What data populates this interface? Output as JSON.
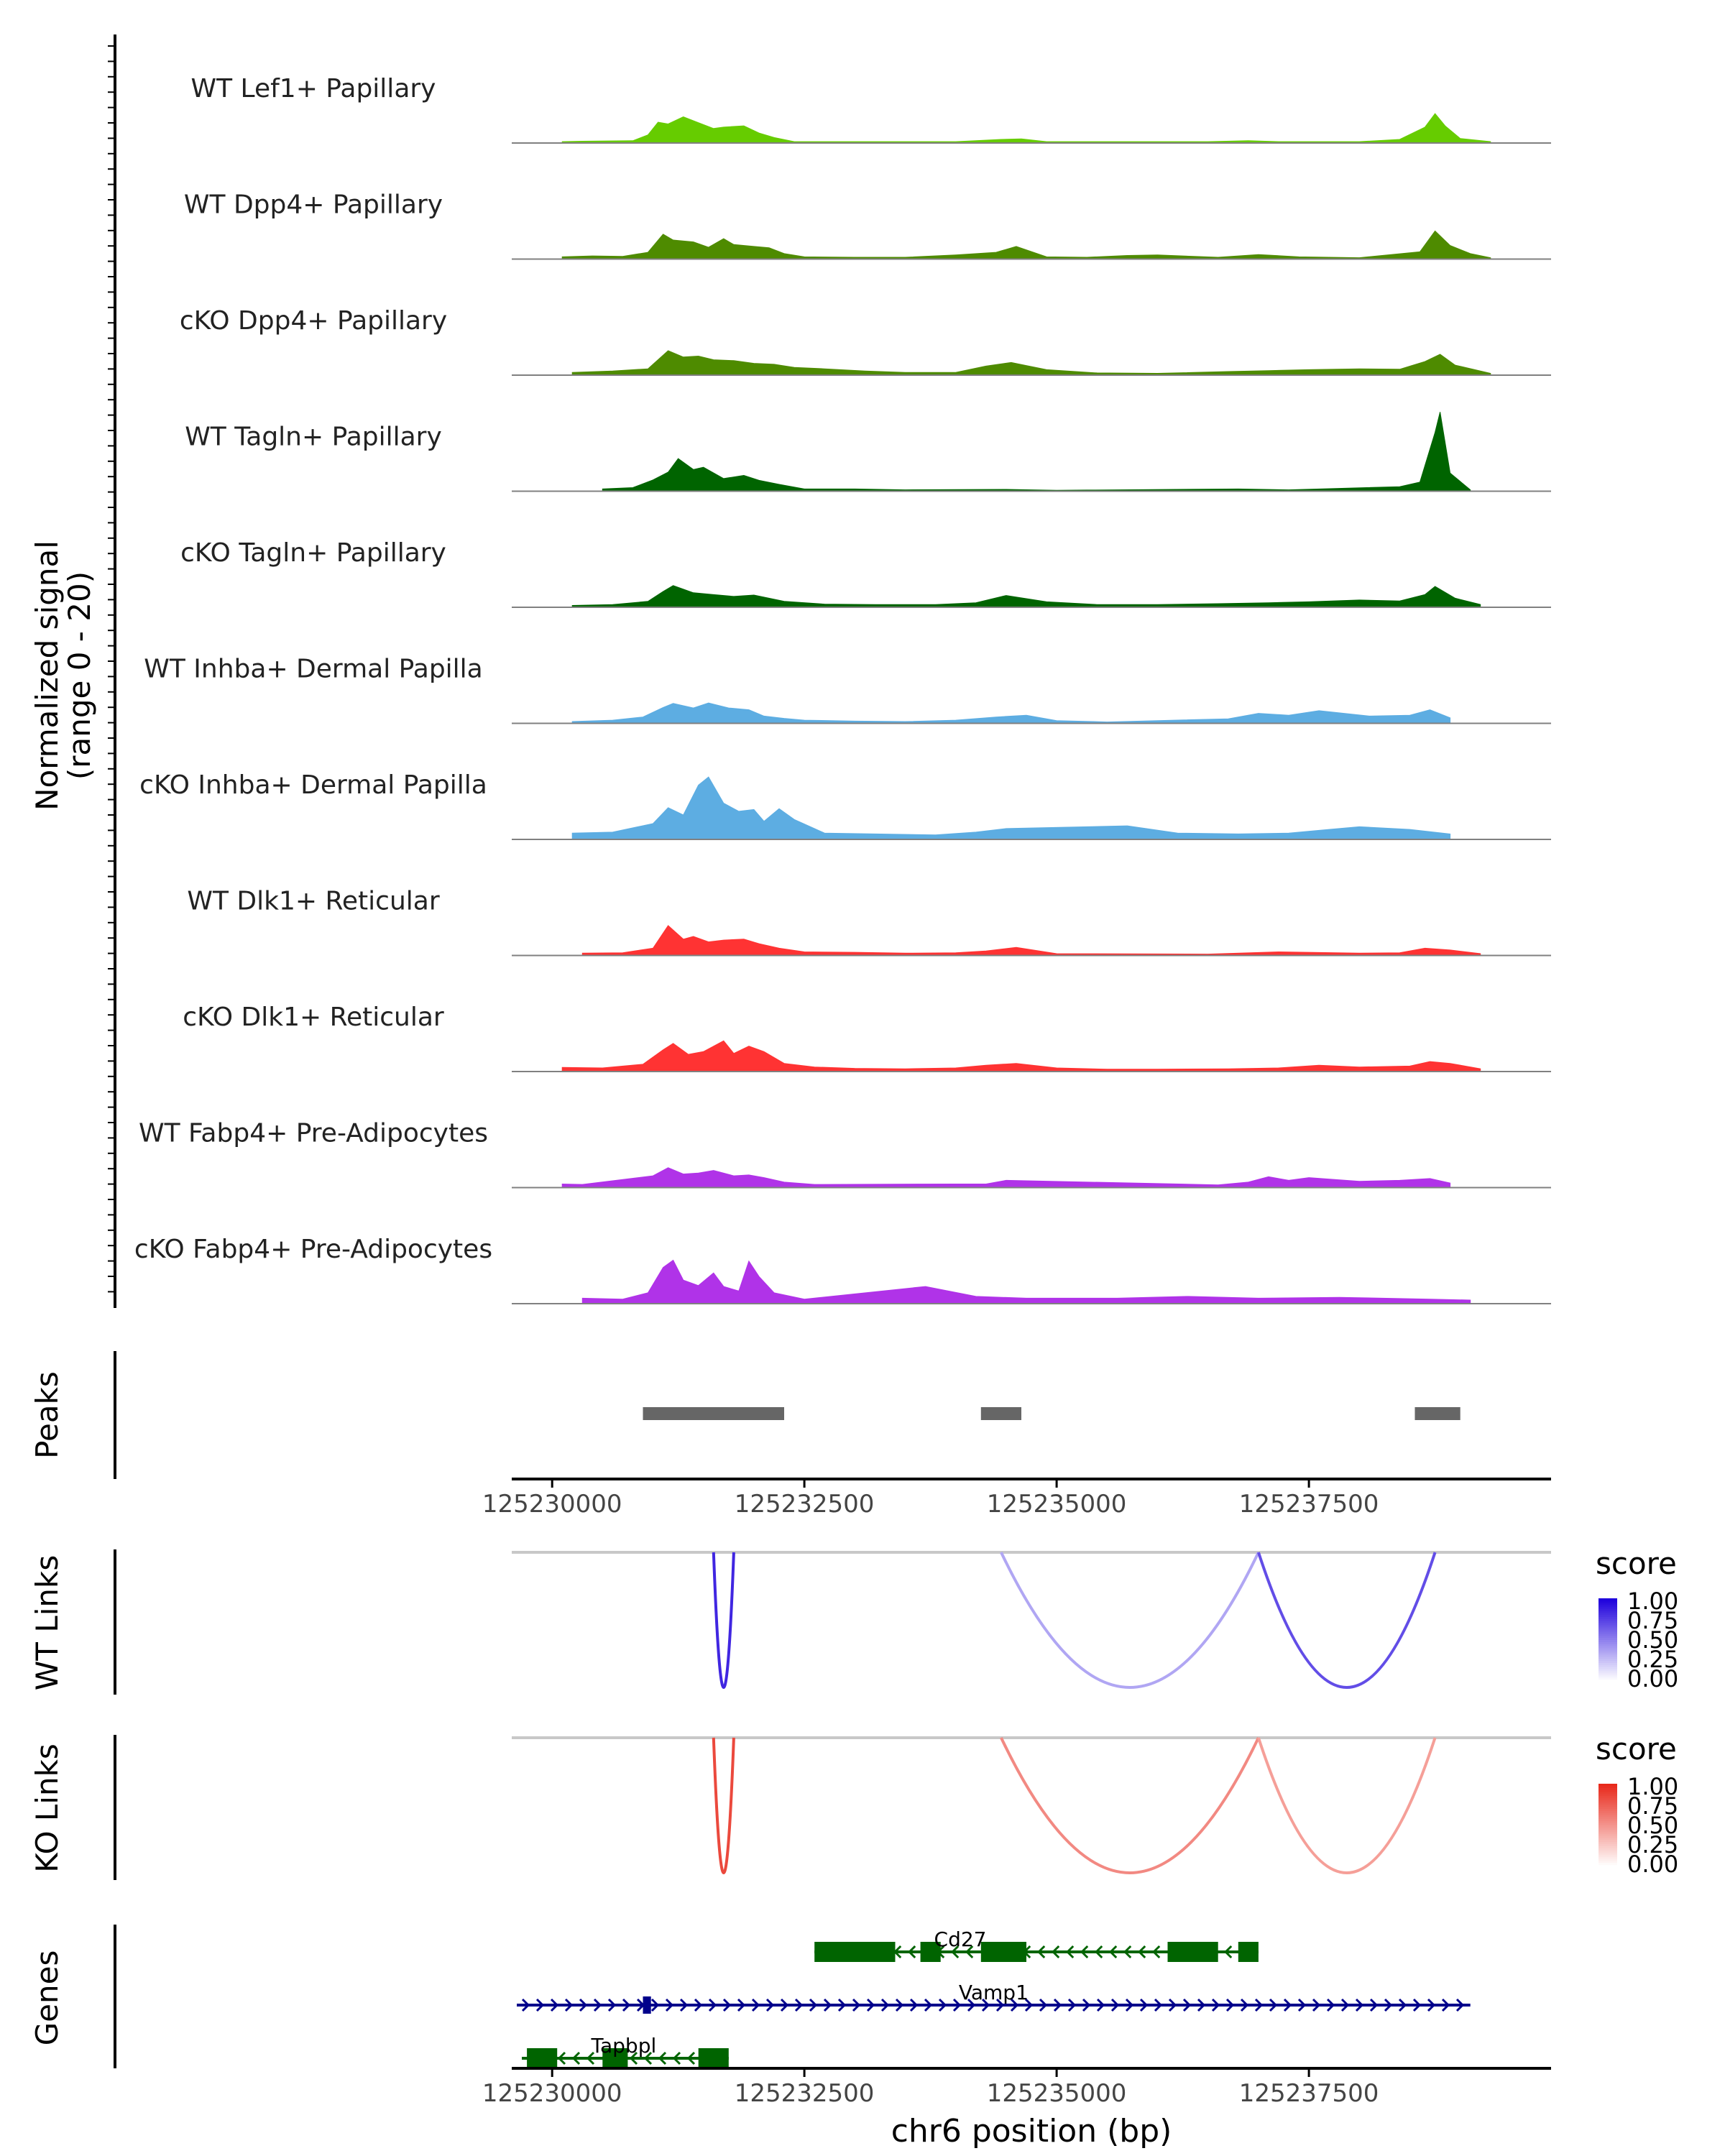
{
  "chart_data": {
    "type": "area",
    "title": "",
    "region": {
      "chrom": "chr6",
      "start": 125229600,
      "end": 125239900
    },
    "y_axis_title": [
      "Normalized signal",
      "(range 0 - 20)"
    ],
    "xlabel": "chr6 position (bp)",
    "x_ticks": [
      125230000,
      125232500,
      125235000,
      125237500
    ],
    "tracks": [
      {
        "label": "WT Lef1+ Papillary",
        "color": "#66CC00",
        "x": [
          125230100,
          125230300,
          125230800,
          125230950,
          125231050,
          125231150,
          125231300,
          125231450,
          125231600,
          125231700,
          125231900,
          125232050,
          125232200,
          125232400,
          125233000,
          125234000,
          125234450,
          125234650,
          125234900,
          125236500,
          125236900,
          125237200,
          125238000,
          125238400,
          125238650,
          125238750,
          125238850,
          125239000,
          125239300
        ],
        "y": [
          0.3,
          0.4,
          0.5,
          1.8,
          4.6,
          4.2,
          5.8,
          4.5,
          3.2,
          3.5,
          3.8,
          2.2,
          1.2,
          0.3,
          0.3,
          0.3,
          0.8,
          0.9,
          0.3,
          0.3,
          0.5,
          0.3,
          0.3,
          0.8,
          3.5,
          6.5,
          3.8,
          1.0,
          0.3
        ]
      },
      {
        "label": "WT Dpp4+ Papillary",
        "color": "#4E8B00",
        "x": [
          125230100,
          125230400,
          125230700,
          125230950,
          125231100,
          125231200,
          125231400,
          125231550,
          125231700,
          125231800,
          125232000,
          125232150,
          125232300,
          125232500,
          125233000,
          125233500,
          125234000,
          125234400,
          125234600,
          125234900,
          125235300,
          125235700,
          125236000,
          125236600,
          125237000,
          125237400,
          125238000,
          125238600,
          125238750,
          125238900,
          125239100,
          125239300
        ],
        "y": [
          0.5,
          0.7,
          0.6,
          1.5,
          5.5,
          4.2,
          3.8,
          2.6,
          4.5,
          3.2,
          2.8,
          2.5,
          1.2,
          0.5,
          0.4,
          0.4,
          0.9,
          1.5,
          2.8,
          0.5,
          0.4,
          0.8,
          0.9,
          0.4,
          1.0,
          0.5,
          0.3,
          1.6,
          6.2,
          3.0,
          1.2,
          0.3
        ]
      },
      {
        "label": "cKO Dpp4+ Papillary",
        "color": "#4E8B00",
        "x": [
          125230200,
          125230600,
          125230950,
          125231150,
          125231300,
          125231450,
          125231600,
          125231800,
          125232000,
          125232200,
          125232400,
          125232700,
          125233100,
          125233500,
          125234000,
          125234300,
          125234550,
          125234900,
          125235400,
          125236000,
          125236700,
          125237100,
          125237500,
          125238000,
          125238400,
          125238650,
          125238800,
          125238950,
          125239300
        ],
        "y": [
          0.6,
          0.9,
          1.4,
          5.4,
          4.0,
          4.2,
          3.4,
          3.2,
          2.6,
          2.4,
          1.7,
          1.4,
          0.9,
          0.6,
          0.6,
          2.0,
          2.8,
          1.2,
          0.5,
          0.4,
          0.8,
          1.0,
          1.2,
          1.4,
          1.3,
          3.0,
          4.6,
          2.2,
          0.4
        ]
      },
      {
        "label": "WT Tagln+ Papillary",
        "color": "#006400",
        "x": [
          125230500,
          125230800,
          125231000,
          125231150,
          125231250,
          125231400,
          125231500,
          125231700,
          125231900,
          125232050,
          125232250,
          125232500,
          125233000,
          125233500,
          125234500,
          125235000,
          125236800,
          125237300,
          125238400,
          125238600,
          125238750,
          125238800,
          125238900,
          125239100
        ],
        "y": [
          0.5,
          0.8,
          2.5,
          4.2,
          7.2,
          4.8,
          5.3,
          2.8,
          3.5,
          2.4,
          1.5,
          0.5,
          0.5,
          0.3,
          0.4,
          0.2,
          0.5,
          0.3,
          1.0,
          2.0,
          13.0,
          17.5,
          4.0,
          0.3
        ]
      },
      {
        "label": "cKO Tagln+ Papillary",
        "color": "#006400",
        "x": [
          125230200,
          125230600,
          125230950,
          125231100,
          125231200,
          125231400,
          125231600,
          125231800,
          125232000,
          125232300,
          125232700,
          125233200,
          125233800,
          125234200,
          125234500,
          125234900,
          125235400,
          125236000,
          125236600,
          125237100,
          125237500,
          125238000,
          125238400,
          125238650,
          125238750,
          125238950,
          125239200
        ],
        "y": [
          0.4,
          0.6,
          1.3,
          3.5,
          4.8,
          3.2,
          2.8,
          2.4,
          2.7,
          1.3,
          0.7,
          0.6,
          0.6,
          1.0,
          2.6,
          1.2,
          0.6,
          0.6,
          0.8,
          1.0,
          1.2,
          1.6,
          1.4,
          2.8,
          4.6,
          2.0,
          0.6
        ]
      },
      {
        "label": "WT Inhba+ Dermal Papilla",
        "color": "#5DADE2",
        "x": [
          125230200,
          125230600,
          125230900,
          125231100,
          125231200,
          125231400,
          125231550,
          125231750,
          125231950,
          125232100,
          125232300,
          125232500,
          125233000,
          125233500,
          125234000,
          125234400,
          125234700,
          125235000,
          125235500,
          125236000,
          125236700,
          125237000,
          125237300,
          125237600,
          125238100,
          125238500,
          125238700,
          125238900
        ],
        "y": [
          0.4,
          0.7,
          1.4,
          3.5,
          4.4,
          3.4,
          4.5,
          3.4,
          3.0,
          1.6,
          1.1,
          0.7,
          0.5,
          0.4,
          0.7,
          1.4,
          1.8,
          0.6,
          0.3,
          0.6,
          1.0,
          2.2,
          1.8,
          2.8,
          1.6,
          1.8,
          3.0,
          1.2
        ]
      },
      {
        "label": "cKO Inhba+ Dermal Papilla",
        "color": "#5DADE2",
        "x": [
          125230200,
          125230600,
          125231000,
          125231150,
          125231300,
          125231450,
          125231550,
          125231700,
          125231850,
          125232000,
          125232100,
          125232250,
          125232400,
          125232700,
          125233200,
          125233800,
          125234200,
          125234500,
          125235700,
          125236200,
          125236800,
          125237300,
          125237700,
          125238000,
          125238500,
          125238900
        ],
        "y": [
          1.4,
          1.6,
          3.5,
          7.0,
          5.4,
          12.0,
          13.8,
          8.0,
          6.2,
          6.6,
          4.0,
          6.8,
          4.4,
          1.4,
          1.2,
          1.0,
          1.6,
          2.4,
          3.0,
          1.4,
          1.2,
          1.4,
          2.2,
          2.8,
          2.2,
          1.2
        ]
      },
      {
        "label": "WT Dlk1+ Reticular",
        "color": "#FF3333",
        "x": [
          125230300,
          125230700,
          125231000,
          125231150,
          125231300,
          125231400,
          125231550,
          125231700,
          125231900,
          125232050,
          125232250,
          125232500,
          125233000,
          125233500,
          125234000,
          125234300,
          125234600,
          125235000,
          125236500,
          125237200,
          125238000,
          125238400,
          125238650,
          125238900,
          125239200
        ],
        "y": [
          0.5,
          0.6,
          1.6,
          6.6,
          3.6,
          4.2,
          3.0,
          3.4,
          3.6,
          2.6,
          1.6,
          0.8,
          0.7,
          0.5,
          0.6,
          1.0,
          1.8,
          0.4,
          0.3,
          0.8,
          0.5,
          0.6,
          1.6,
          1.2,
          0.4
        ]
      },
      {
        "label": "cKO Dlk1+ Reticular",
        "color": "#FF3333",
        "x": [
          125230100,
          125230500,
          125230900,
          125231100,
          125231200,
          125231350,
          125231500,
          125231700,
          125231800,
          125231950,
          125232100,
          125232300,
          125232600,
          125233000,
          125233500,
          125234000,
          125234300,
          125234600,
          125235000,
          125235500,
          125236000,
          125236700,
          125237200,
          125237600,
          125238000,
          125238500,
          125238700,
          125238900,
          125239200
        ],
        "y": [
          0.9,
          0.8,
          1.6,
          4.8,
          6.2,
          3.8,
          4.4,
          6.8,
          4.0,
          5.6,
          4.4,
          1.8,
          1.0,
          0.7,
          0.6,
          0.8,
          1.4,
          1.8,
          0.8,
          0.5,
          0.5,
          0.6,
          0.8,
          1.4,
          1.0,
          1.2,
          2.2,
          1.8,
          0.6
        ]
      },
      {
        "label": "WT Fabp4+ Pre-Adipocytes",
        "color": "#B033E8",
        "x": [
          125230100,
          125230300,
          125231000,
          125231150,
          125231300,
          125231450,
          125231600,
          125231800,
          125231950,
          125232100,
          125232300,
          125232600,
          125234000,
          125234300,
          125234500,
          125236600,
          125236900,
          125237100,
          125237300,
          125237500,
          125238000,
          125238400,
          125238700,
          125238900
        ],
        "y": [
          0.8,
          0.7,
          2.6,
          4.4,
          3.0,
          3.2,
          3.8,
          2.6,
          2.8,
          2.2,
          1.2,
          0.7,
          0.8,
          0.8,
          1.6,
          0.6,
          1.2,
          2.4,
          1.6,
          2.2,
          1.4,
          1.6,
          2.0,
          1.0
        ]
      },
      {
        "label": "cKO Fabp4+ Pre-Adipocytes",
        "color": "#B033E8",
        "x": [
          125230300,
          125230700,
          125230950,
          125231100,
          125231200,
          125231300,
          125231450,
          125231600,
          125231700,
          125231850,
          125231950,
          125232050,
          125232200,
          125232500,
          125233700,
          125234200,
          125234700,
          125235600,
          125236300,
          125237000,
          125237800,
          125238700,
          125239100
        ],
        "y": [
          1.2,
          1.0,
          2.4,
          8.0,
          9.6,
          5.2,
          4.0,
          6.8,
          3.8,
          2.8,
          9.4,
          6.0,
          2.4,
          1.0,
          3.8,
          1.6,
          1.2,
          1.2,
          1.6,
          1.2,
          1.4,
          1.0,
          0.8
        ]
      }
    ],
    "peaks": {
      "label": "Peaks",
      "color": "#666666",
      "regions": [
        [
          125230900,
          125232300
        ],
        [
          125234250,
          125234650
        ],
        [
          125238550,
          125239000
        ]
      ]
    },
    "links": [
      {
        "label": "WT Links",
        "legend_title": "score",
        "low_color": "#FFFFFF",
        "high_color": "#1E00DC",
        "scale_ticks": [
          "1.00",
          "0.75",
          "0.50",
          "0.25",
          "0.00"
        ],
        "arcs": [
          {
            "start": 125231600,
            "end": 125231800,
            "score": 0.85
          },
          {
            "start": 125234450,
            "end": 125237000,
            "score": 0.35
          },
          {
            "start": 125237000,
            "end": 125238750,
            "score": 0.7
          }
        ]
      },
      {
        "label": "KO Links",
        "legend_title": "score",
        "low_color": "#FFFFFF",
        "high_color": "#E8291B",
        "scale_ticks": [
          "1.00",
          "0.75",
          "0.50",
          "0.25",
          "0.00"
        ],
        "arcs": [
          {
            "start": 125231600,
            "end": 125231800,
            "score": 0.85
          },
          {
            "start": 125234450,
            "end": 125237000,
            "score": 0.55
          },
          {
            "start": 125237000,
            "end": 125238750,
            "score": 0.45
          }
        ]
      }
    ],
    "genes": {
      "label": "Genes",
      "items": [
        {
          "name": "Cd27",
          "color": "#006400",
          "strand": "-",
          "start": 125232600,
          "end": 125237000,
          "row": 0,
          "exons": [
            [
              125232600,
              125233400
            ],
            [
              125233650,
              125233850
            ],
            [
              125234250,
              125234700
            ],
            [
              125236100,
              125236600
            ],
            [
              125236800,
              125237000
            ]
          ]
        },
        {
          "name": "Vamp1",
          "color": "#00008B",
          "strand": "+",
          "start": 125229650,
          "end": 125239100,
          "row": 1,
          "exons": [
            [
              125230900,
              125230980
            ]
          ]
        },
        {
          "name": "Tapbpl",
          "color": "#006400",
          "strand": "-",
          "start": 125229700,
          "end": 125231750,
          "row": 2,
          "exons": [
            [
              125229750,
              125230050
            ],
            [
              125230500,
              125230750
            ],
            [
              125231450,
              125231750
            ]
          ]
        }
      ]
    }
  }
}
